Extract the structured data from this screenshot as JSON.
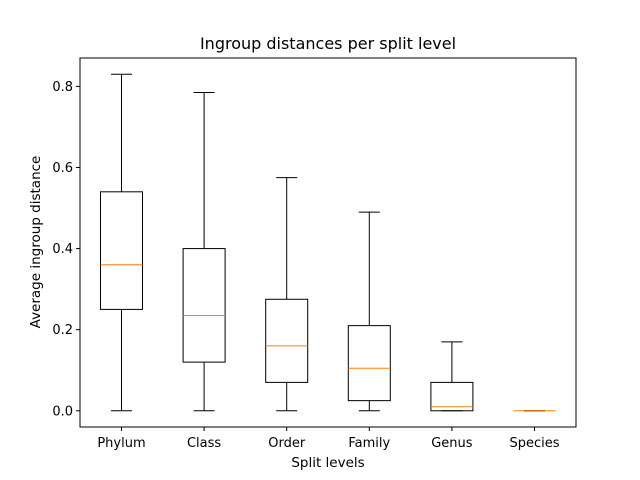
{
  "chart_data": {
    "type": "box",
    "title": "Ingroup distances per split level",
    "xlabel": "Split levels",
    "ylabel": "Average ingroup distance",
    "ylim": [
      -0.04,
      0.87
    ],
    "yticks": [
      "0.0",
      "0.2",
      "0.4",
      "0.6",
      "0.8"
    ],
    "grid": false,
    "categories": [
      "Phylum",
      "Class",
      "Order",
      "Family",
      "Genus",
      "Species"
    ],
    "boxes": [
      {
        "label": "Phylum",
        "whisker_low": 0.0,
        "q1": 0.25,
        "median": 0.36,
        "q3": 0.54,
        "whisker_high": 0.83
      },
      {
        "label": "Class",
        "whisker_low": 0.0,
        "q1": 0.12,
        "median": 0.235,
        "q3": 0.4,
        "whisker_high": 0.785
      },
      {
        "label": "Order",
        "whisker_low": 0.0,
        "q1": 0.07,
        "median": 0.16,
        "q3": 0.275,
        "whisker_high": 0.575
      },
      {
        "label": "Family",
        "whisker_low": 0.0,
        "q1": 0.025,
        "median": 0.105,
        "q3": 0.21,
        "whisker_high": 0.49
      },
      {
        "label": "Genus",
        "whisker_low": 0.0,
        "q1": 0.0,
        "median": 0.01,
        "q3": 0.07,
        "whisker_high": 0.17
      },
      {
        "label": "Species",
        "whisker_low": 0.0,
        "q1": 0.0,
        "median": 0.0,
        "q3": 0.0,
        "whisker_high": 0.0
      }
    ],
    "colors": {
      "box": "#000000",
      "median": "#ff7f0e",
      "axes": "#000000"
    }
  }
}
